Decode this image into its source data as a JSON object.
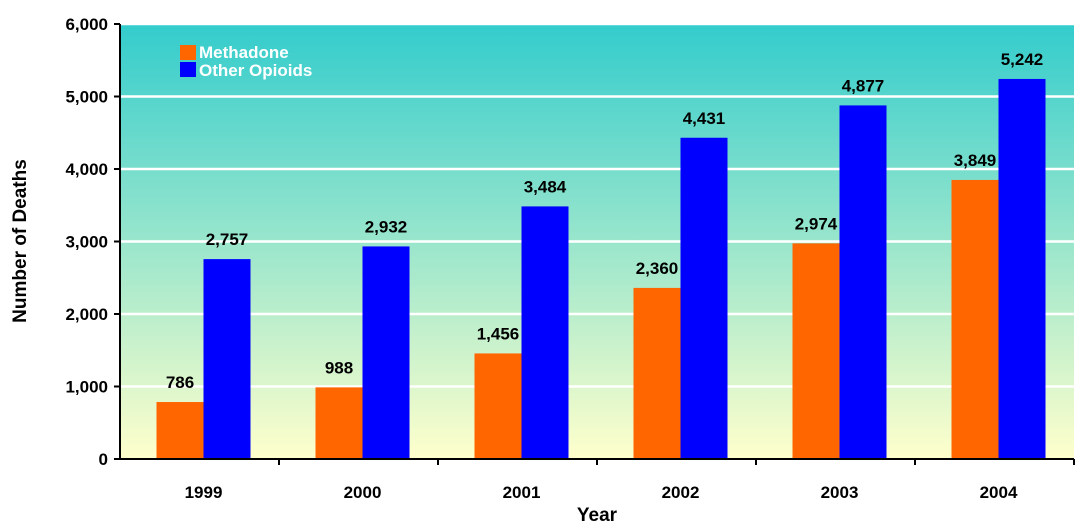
{
  "chart_data": {
    "type": "bar",
    "categories": [
      "1999",
      "2000",
      "2001",
      "2002",
      "2003",
      "2004"
    ],
    "series": [
      {
        "name": "Methadone",
        "values": [
          786,
          988,
          1456,
          2360,
          2974,
          3849
        ],
        "color": "#ff6600"
      },
      {
        "name": "Other Opioids",
        "values": [
          2757,
          2932,
          3484,
          4431,
          4877,
          5242
        ],
        "color": "#0000ff"
      }
    ],
    "value_labels": [
      [
        "786",
        "988",
        "1,456",
        "2,360",
        "2,974",
        "3,849"
      ],
      [
        "2,757",
        "2,932",
        "3,484",
        "4,431",
        "4,877",
        "5,242"
      ]
    ],
    "xlabel": "Year",
    "ylabel": "Number of Deaths",
    "ylim": [
      0,
      6000
    ],
    "yticks": [
      0,
      1000,
      2000,
      3000,
      4000,
      5000,
      6000
    ],
    "ytick_labels": [
      "0",
      "1,000",
      "2,000",
      "3,000",
      "4,000",
      "5,000",
      "6,000"
    ],
    "grid": true,
    "legend_position": "top-left",
    "background": {
      "top_color": "#33cccc",
      "bottom_color": "#ffffcc"
    },
    "gridline_color": "#ffffff"
  }
}
